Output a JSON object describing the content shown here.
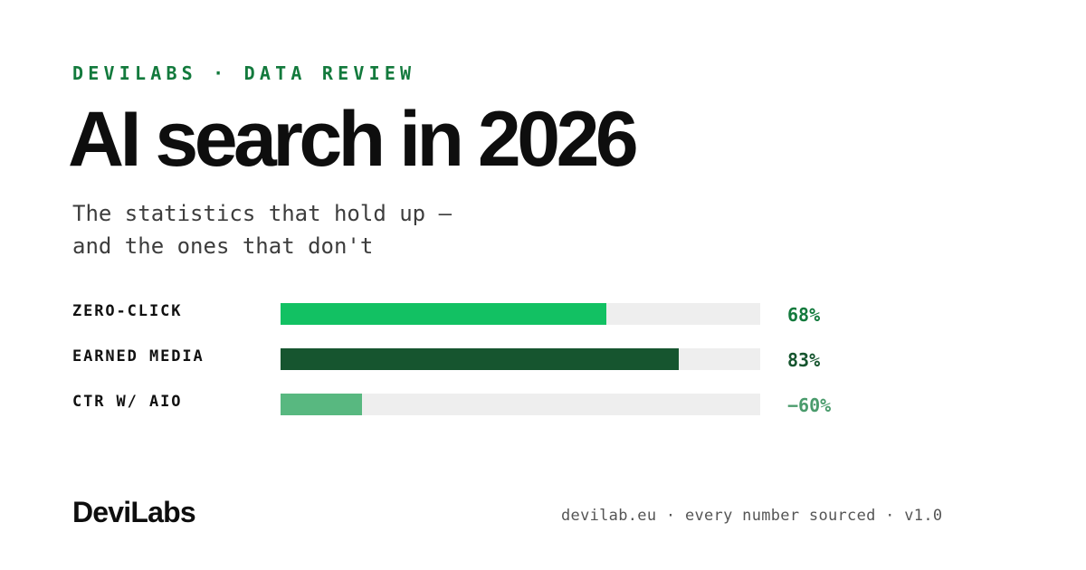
{
  "header": {
    "eyebrow": "DEVILABS · DATA REVIEW",
    "title": "AI search in 2026",
    "subtitle_lines": [
      "The statistics that hold up —",
      "and the ones that don't"
    ]
  },
  "stats": [
    {
      "label": "ZERO-CLICK",
      "value": "68%",
      "fill_fraction": 0.68,
      "bar_color": "#12c163",
      "value_color": "#137a3d"
    },
    {
      "label": "EARNED MEDIA",
      "value": "83%",
      "fill_fraction": 0.83,
      "bar_color": "#16552f",
      "value_color": "#16552f"
    },
    {
      "label": "CTR W/ AIO",
      "value": "−60%",
      "fill_fraction": 0.17,
      "bar_color": "#58b880",
      "value_color": "#4a9b6c"
    }
  ],
  "footer": {
    "brand": "DeviLabs",
    "meta": "devilab.eu · every number sourced · v1.0"
  }
}
